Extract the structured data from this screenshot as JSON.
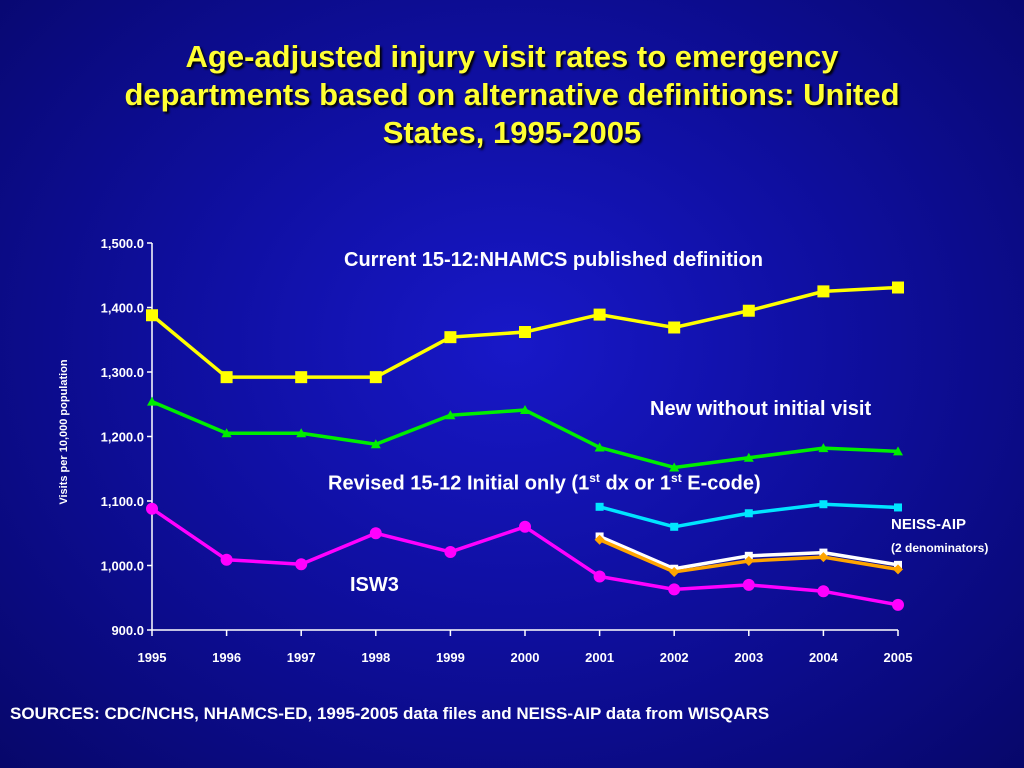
{
  "title": {
    "lines": [
      "Age-adjusted injury visit rates to emergency",
      "departments based on alternative definitions: United",
      "States, 1995-2005"
    ]
  },
  "sources": "SOURCES: CDC/NCHS, NHAMCS-ED, 1995-2005 data files and NEISS-AIP data from WISQARS",
  "labels": {
    "current": "Current 15-12:NHAMCS published definition",
    "new_without": "New without initial visit",
    "revised_pre": "Revised 15-12 Initial only (1",
    "revised_sup1": "st",
    "revised_mid": " dx or 1",
    "revised_sup2": "st",
    "revised_post": " E-code)",
    "neiss": "NEISS-AIP",
    "neiss_sub": "(2 denominators)",
    "isw3": "ISW3"
  },
  "chart_data": {
    "type": "line",
    "x": [
      "1995",
      "1996",
      "1997",
      "1998",
      "1999",
      "2000",
      "2001",
      "2002",
      "2003",
      "2004",
      "2005"
    ],
    "ylabel": "Visits per 10,000 population",
    "xlabel": "",
    "ylim": [
      900,
      1500
    ],
    "yticks": [
      "900.0",
      "1,000.0",
      "1,100.0",
      "1,200.0",
      "1,300.0",
      "1,400.0",
      "1,500.0"
    ],
    "grid": false,
    "series": [
      {
        "name": "Current 15-12:NHAMCS published definition",
        "color": "#ffff00",
        "marker": "square",
        "values": [
          1388,
          1292,
          1292,
          1292,
          1354,
          1362,
          1389,
          1369,
          1395,
          1425,
          1431
        ]
      },
      {
        "name": "New without initial visit",
        "color": "#00ee00",
        "marker": "triangle",
        "values": [
          1254,
          1205,
          1205,
          1188,
          1233,
          1241,
          1183,
          1152,
          1167,
          1182,
          1177
        ]
      },
      {
        "name": "Revised 15-12 Initial only (1st dx or 1st E-code)",
        "color": "#ff00ff",
        "marker": "circle",
        "values": [
          1088,
          1009,
          1002,
          1050,
          1021,
          1060,
          983,
          963,
          970,
          960,
          939
        ]
      },
      {
        "name": "NEISS-AIP",
        "color": "#00e5ff",
        "marker": "square",
        "values": [
          null,
          null,
          null,
          null,
          null,
          null,
          1091,
          1060,
          1081,
          1095,
          1090
        ]
      },
      {
        "name": "NEISS-AIP",
        "color": "#ffffff",
        "marker": "square",
        "values": [
          null,
          null,
          null,
          null,
          null,
          null,
          1045,
          995,
          1015,
          1020,
          1001
        ]
      },
      {
        "name": "NEISS-AIP",
        "color": "#ffa500",
        "marker": "diamond",
        "values": [
          null,
          null,
          null,
          null,
          null,
          null,
          1040,
          990,
          1007,
          1013,
          994
        ]
      }
    ]
  }
}
